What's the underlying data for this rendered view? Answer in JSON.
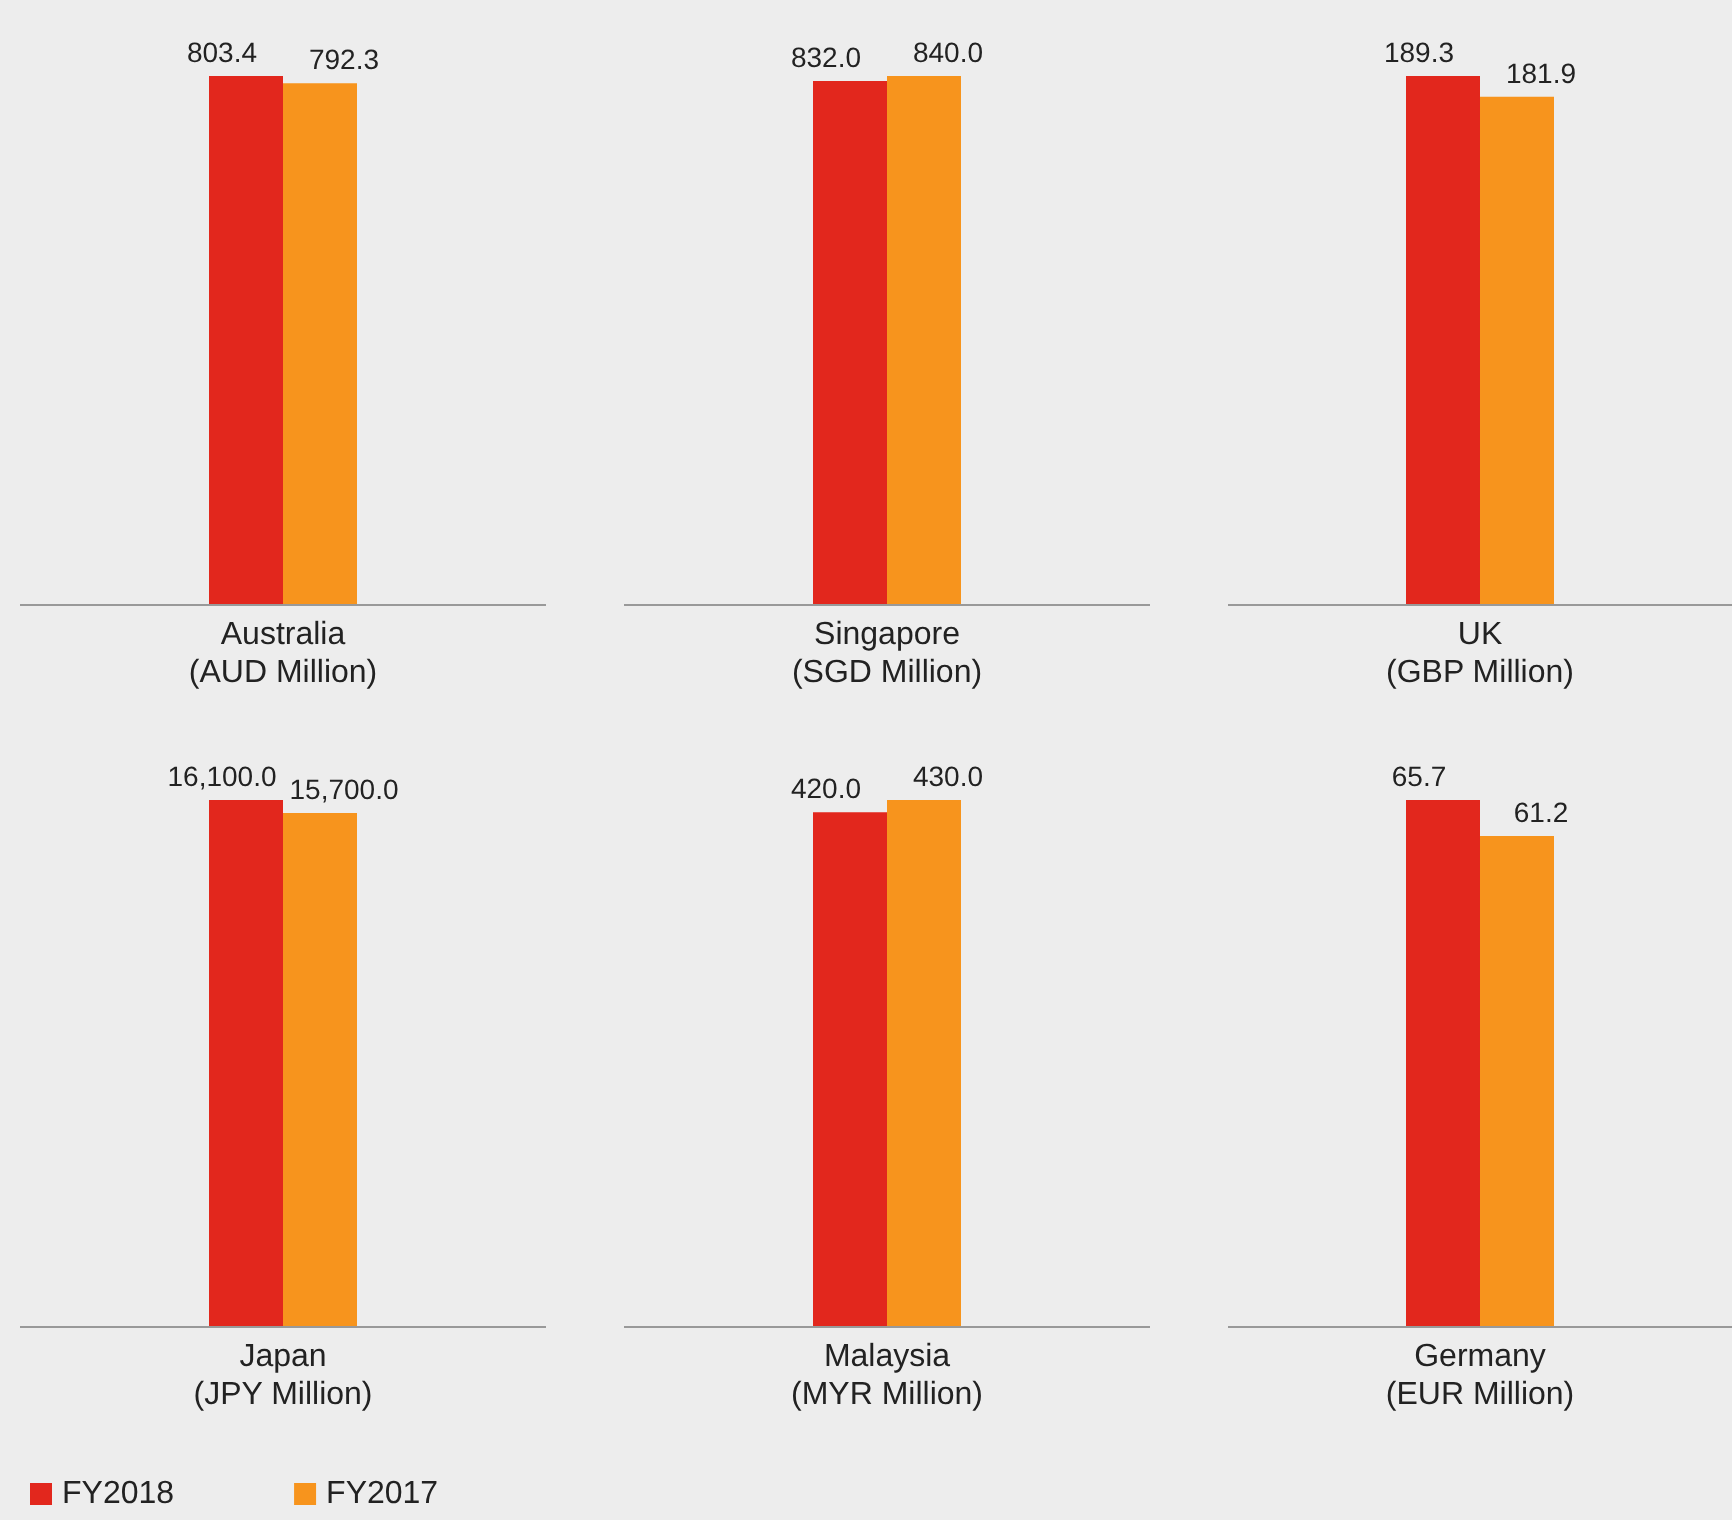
{
  "chart_data": [
    {
      "type": "bar",
      "categories": [
        "Australia (AUD Million)"
      ],
      "series": [
        {
          "color": "#e2271d",
          "values": [
            803.4
          ],
          "value_labels": [
            "803.4"
          ]
        },
        {
          "color": "#f7941d",
          "values": [
            792.3
          ],
          "value_labels": [
            "792.3"
          ]
        }
      ]
    },
    {
      "type": "bar",
      "categories": [
        "Singapore (SGD Million)"
      ],
      "series": [
        {
          "color": "#e2271d",
          "values": [
            832.0
          ],
          "value_labels": [
            "832.0"
          ]
        },
        {
          "color": "#f7941d",
          "values": [
            840.0
          ],
          "value_labels": [
            "840.0"
          ]
        }
      ]
    },
    {
      "type": "bar",
      "categories": [
        "UK (GBP Million)"
      ],
      "series": [
        {
          "color": "#e2271d",
          "values": [
            189.3
          ],
          "value_labels": [
            "189.3"
          ]
        },
        {
          "color": "#f7941d",
          "values": [
            181.9
          ],
          "value_labels": [
            "181.9"
          ]
        }
      ]
    },
    {
      "type": "bar",
      "categories": [
        "Japan (JPY Million)"
      ],
      "legend": "bottom left",
      "series": [
        {
          "name": "FY2018",
          "color": "#e2271d",
          "values": [
            16100.0
          ],
          "value_labels": [
            "16,100.0"
          ]
        },
        {
          "name": "FY2017",
          "color": "#f7941d",
          "values": [
            15700.0
          ],
          "value_labels": [
            "15,700.0"
          ]
        }
      ]
    },
    {
      "type": "bar",
      "categories": [
        "Malaysia (MYR Million)"
      ],
      "series": [
        {
          "color": "#e2271d",
          "values": [
            420.0
          ],
          "value_labels": [
            "420.0"
          ]
        },
        {
          "color": "#f7941d",
          "values": [
            430.0
          ],
          "value_labels": [
            "430.0"
          ]
        }
      ]
    },
    {
      "type": "bar",
      "categories": [
        "Germany (EUR Million)"
      ],
      "series": [
        {
          "color": "#e2271d",
          "values": [
            65.7
          ],
          "value_labels": [
            "65.7"
          ]
        },
        {
          "color": "#f7941d",
          "values": [
            61.2
          ],
          "value_labels": [
            "61.2"
          ]
        }
      ]
    }
  ]
}
